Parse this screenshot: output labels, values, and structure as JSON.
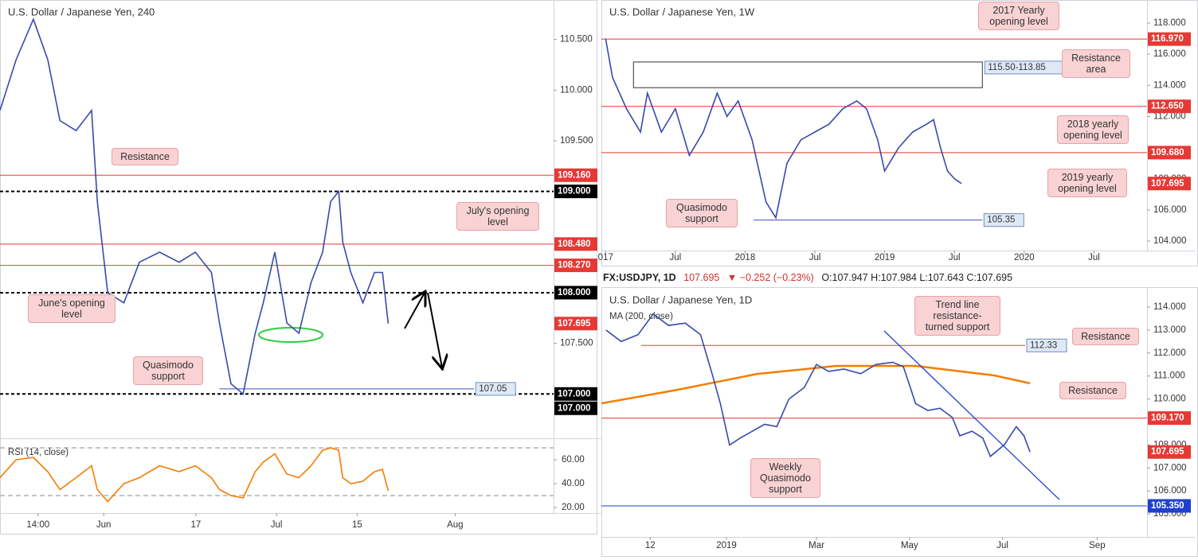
{
  "header": {
    "symbol": "FX:USDJPY, 1D",
    "price": "107.695",
    "change": "▼ −0.252 (−0.23%)",
    "ohlc": "O:107.947 H:107.984 L:107.643 C:107.695"
  },
  "chart_data": [
    {
      "type": "line",
      "title": "U.S. Dollar / Japanese Yen, 240",
      "color": "#3949ab",
      "x": [
        134.0,
        136.8,
        139.8,
        142.3,
        144.4,
        147.2,
        149.9,
        150.9,
        152.7,
        155.5,
        158.2,
        161.7,
        165.1,
        167.9,
        170.7,
        172.1,
        174.1,
        176.2,
        178.3,
        179.7,
        181.7,
        183.8,
        185.9,
        188.0,
        190.0,
        191.4,
        192.8,
        193.5,
        194.9,
        197.0,
        199.0,
        200.4,
        201.4
      ],
      "values": [
        109.8,
        110.3,
        110.7,
        110.3,
        109.7,
        109.6,
        109.8,
        108.9,
        108.0,
        107.9,
        108.3,
        108.4,
        108.3,
        108.4,
        108.2,
        107.7,
        107.1,
        107.0,
        107.6,
        107.9,
        108.4,
        107.7,
        107.6,
        108.1,
        108.4,
        108.9,
        109.0,
        108.5,
        108.2,
        107.9,
        108.2,
        108.2,
        107.695
      ],
      "xlim": [
        134.0,
        230.1
      ],
      "xticks": [
        {
          "value": 140.6,
          "label": "14:00"
        },
        {
          "value": 152,
          "label": "Jun"
        },
        {
          "value": 168,
          "label": "17"
        },
        {
          "value": 182,
          "label": "Jul"
        },
        {
          "value": 196,
          "label": "15"
        },
        {
          "value": 213,
          "label": "Aug"
        }
      ],
      "ylim": [
        106.57,
        110.89
      ],
      "yticks": [
        {
          "value": 110.5,
          "label": "110.500"
        },
        {
          "value": 110,
          "label": "110.000"
        },
        {
          "value": 109.5,
          "label": "109.500"
        },
        {
          "value": 107.5,
          "label": "107.500"
        }
      ],
      "levels": [
        {
          "value": 109.16,
          "label": "109.160",
          "color": "#e53935",
          "style": "solid",
          "label_style": "axis"
        },
        {
          "value": 109,
          "label": "109.000",
          "color": "#000000",
          "style": "dashed",
          "label_style": "axis"
        },
        {
          "value": 108.48,
          "label": "108.480",
          "color": "#e53935",
          "style": "solid",
          "label_style": "axis"
        },
        {
          "value": 108.27,
          "label": "108.270",
          "color": "#e53935",
          "style": "solid",
          "label_style": "axis"
        },
        {
          "value": 108,
          "label": "108.000",
          "color": "#000000",
          "style": "dashed",
          "label_style": "axis"
        },
        {
          "value": 107,
          "label": "107.000",
          "color": "#000000",
          "style": "dashed",
          "label_style": "axis"
        },
        {
          "value": 107.05,
          "label": "107.05",
          "color": "#3f51b5",
          "style": "solid",
          "label_style": "box",
          "x0": 172.1,
          "x1": 216.3
        }
      ],
      "price_labels": [
        {
          "value": 107.695,
          "label": "107.695",
          "color": "#e53935"
        },
        {
          "value": 107,
          "label": "107.000",
          "color": "#000000"
        }
      ],
      "annotations": [
        "Resistance",
        "July's opening level",
        "June's opening level",
        "Quasimodo support"
      ],
      "rsi": {
        "label": "RSI (14, close)",
        "color": "#f57c00",
        "values": [
          45,
          60,
          62,
          50,
          35,
          45,
          55,
          35,
          25,
          40,
          45,
          55,
          50,
          55,
          45,
          35,
          30,
          28,
          50,
          58,
          65,
          48,
          45,
          55,
          68,
          70,
          68,
          45,
          40,
          42,
          50,
          52,
          34
        ],
        "ylim": [
          15.3,
          76.7
        ],
        "yticks": [
          {
            "value": 60,
            "label": "60.00"
          },
          {
            "value": 40,
            "label": "40.00"
          },
          {
            "value": 20,
            "label": "20.00"
          }
        ],
        "levels": [
          70,
          30
        ]
      }
    },
    {
      "type": "line",
      "title": "U.S. Dollar / Japanese Yen, 1W",
      "color": "#3949ab",
      "x": [
        2017.0,
        2017.05,
        2017.1,
        2017.15,
        2017.25,
        2017.3,
        2017.4,
        2017.5,
        2017.6,
        2017.7,
        2017.8,
        2017.87,
        2017.95,
        2018.05,
        2018.15,
        2018.22,
        2018.3,
        2018.4,
        2018.5,
        2018.6,
        2018.7,
        2018.8,
        2018.87,
        2018.95,
        2019.0,
        2019.1,
        2019.2,
        2019.3,
        2019.35,
        2019.4,
        2019.45,
        2019.5,
        2019.55
      ],
      "values": [
        117.0,
        114.5,
        113.5,
        112.5,
        111.0,
        113.5,
        111.0,
        112.5,
        109.5,
        111.0,
        113.5,
        112.0,
        113.0,
        110.5,
        106.5,
        105.5,
        109.0,
        110.5,
        111.0,
        111.5,
        112.5,
        113.0,
        112.5,
        110.5,
        108.5,
        110.0,
        111.0,
        111.5,
        111.8,
        110.0,
        108.5,
        108.0,
        107.695
      ],
      "xlim": [
        2016.97,
        2020.88
      ],
      "xticks": [
        {
          "value": 2017,
          "label": "017"
        },
        {
          "value": 2017.5,
          "label": "Jul"
        },
        2018,
        {
          "value": 2018.5,
          "label": "Jul"
        },
        2019,
        {
          "value": 2019.5,
          "label": "Jul"
        },
        2020,
        {
          "value": 2020.5,
          "label": "Jul"
        }
      ],
      "ylim": [
        103.39,
        119.48
      ],
      "yticks": [
        {
          "value": 118,
          "label": "118.000"
        },
        {
          "value": 116,
          "label": "116.000"
        },
        {
          "value": 114,
          "label": "114.000"
        },
        {
          "value": 112,
          "label": "112.000"
        },
        {
          "value": 108,
          "label": "108.000"
        },
        {
          "value": 106,
          "label": "106.000"
        },
        {
          "value": 104,
          "label": "104.000"
        }
      ],
      "levels": [
        {
          "value": 116.97,
          "label": "116.970",
          "color": "#e53935",
          "style": "solid",
          "label_style": "axis"
        },
        {
          "value": 112.65,
          "label": "112.650",
          "color": "#e53935",
          "style": "solid",
          "label_style": "axis"
        },
        {
          "value": 109.68,
          "label": "109.680",
          "color": "#e53935",
          "style": "solid",
          "label_style": "axis"
        },
        {
          "value": 105.35,
          "label": "105.35",
          "color": "#3f51b5",
          "style": "solid",
          "label_style": "box",
          "x0": 2018.06,
          "x1": 2019.7
        }
      ],
      "zones": [
        {
          "from": 115.5,
          "to": 113.85,
          "label": "115.50-113.85",
          "x0": 2017.2,
          "x1": 2019.7
        }
      ],
      "price_labels": [
        {
          "value": 107.695,
          "label": "107.695",
          "color": "#e53935"
        }
      ],
      "annotations": [
        "2017 Yearly opening level",
        "Resistance area",
        "2018 yearly opening level",
        "2019 yearly opening level",
        "Quasimodo support"
      ]
    },
    {
      "type": "line",
      "title": "U.S. Dollar / Japanese Yen, 1D",
      "color": "#3949ab",
      "x": [
        -79,
        -69,
        -58,
        -48,
        -38,
        -27,
        -17,
        -9,
        -4,
        2,
        9,
        17,
        25,
        33,
        41,
        51,
        59,
        67,
        77,
        88,
        98,
        109,
        116,
        124,
        132,
        140,
        148,
        153,
        161,
        168,
        173,
        182,
        190,
        195,
        199
      ],
      "values": [
        113.0,
        112.5,
        112.8,
        113.7,
        113.2,
        113.3,
        112.8,
        111.0,
        109.8,
        108.0,
        108.3,
        108.6,
        108.9,
        108.8,
        110.0,
        110.5,
        111.5,
        111.2,
        111.3,
        111.1,
        111.5,
        111.6,
        111.4,
        109.8,
        109.5,
        109.6,
        109.2,
        108.4,
        108.6,
        108.3,
        107.5,
        108.0,
        108.8,
        108.4,
        107.695
      ],
      "series": [
        {
          "name": "MA (200, close)",
          "color": "#f57c00",
          "x": [
            -82,
            -32,
            20,
            72,
            124,
            176,
            199
          ],
          "values": [
            109.81,
            110.4,
            111.09,
            111.44,
            111.44,
            111.02,
            110.68
          ]
        }
      ],
      "trendline": {
        "x": [
          103.4,
          218.3
        ],
        "y": [
          112.96,
          105.62
        ],
        "color": "#1e3fd0"
      },
      "xlim": [
        -82,
        275.7
      ],
      "xticks": [
        {
          "value": -50,
          "label": "12"
        },
        {
          "value": 0,
          "label": "2019"
        },
        {
          "value": 59,
          "label": "Mar"
        },
        {
          "value": 120,
          "label": "May"
        },
        {
          "value": 181,
          "label": "Jul"
        },
        {
          "value": 243,
          "label": "Sep"
        }
      ],
      "ylim": [
        104.0,
        114.83
      ],
      "yticks": [
        {
          "value": 114,
          "label": "114.000"
        },
        {
          "value": 113,
          "label": "113.000"
        },
        {
          "value": 112,
          "label": "112.000"
        },
        {
          "value": 111,
          "label": "111.000"
        },
        {
          "value": 110,
          "label": "110.000"
        },
        {
          "value": 108,
          "label": "108.000"
        },
        {
          "value": 107,
          "label": "107.000"
        },
        {
          "value": 106,
          "label": "106.000"
        },
        {
          "value": 105,
          "label": "105.000"
        }
      ],
      "levels": [
        {
          "value": 112.33,
          "label": "112.33",
          "color": "#e53935",
          "style": "solid",
          "label_style": "box",
          "x0": -55.9,
          "x1": 195.8
        },
        {
          "value": 109.17,
          "label": "109.170",
          "color": "#e53935",
          "style": "solid",
          "label_style": "axis"
        },
        {
          "value": 105.35,
          "label": "105.350",
          "color": "#1e3fd0",
          "style": "solid",
          "label_style": "axis"
        }
      ],
      "price_labels": [
        {
          "value": 107.695,
          "label": "107.695",
          "color": "#e53935"
        }
      ],
      "annotations": [
        "Trend line resistance-turned support",
        "Resistance",
        "Resistance",
        "Weekly Quasimodo support"
      ]
    }
  ]
}
